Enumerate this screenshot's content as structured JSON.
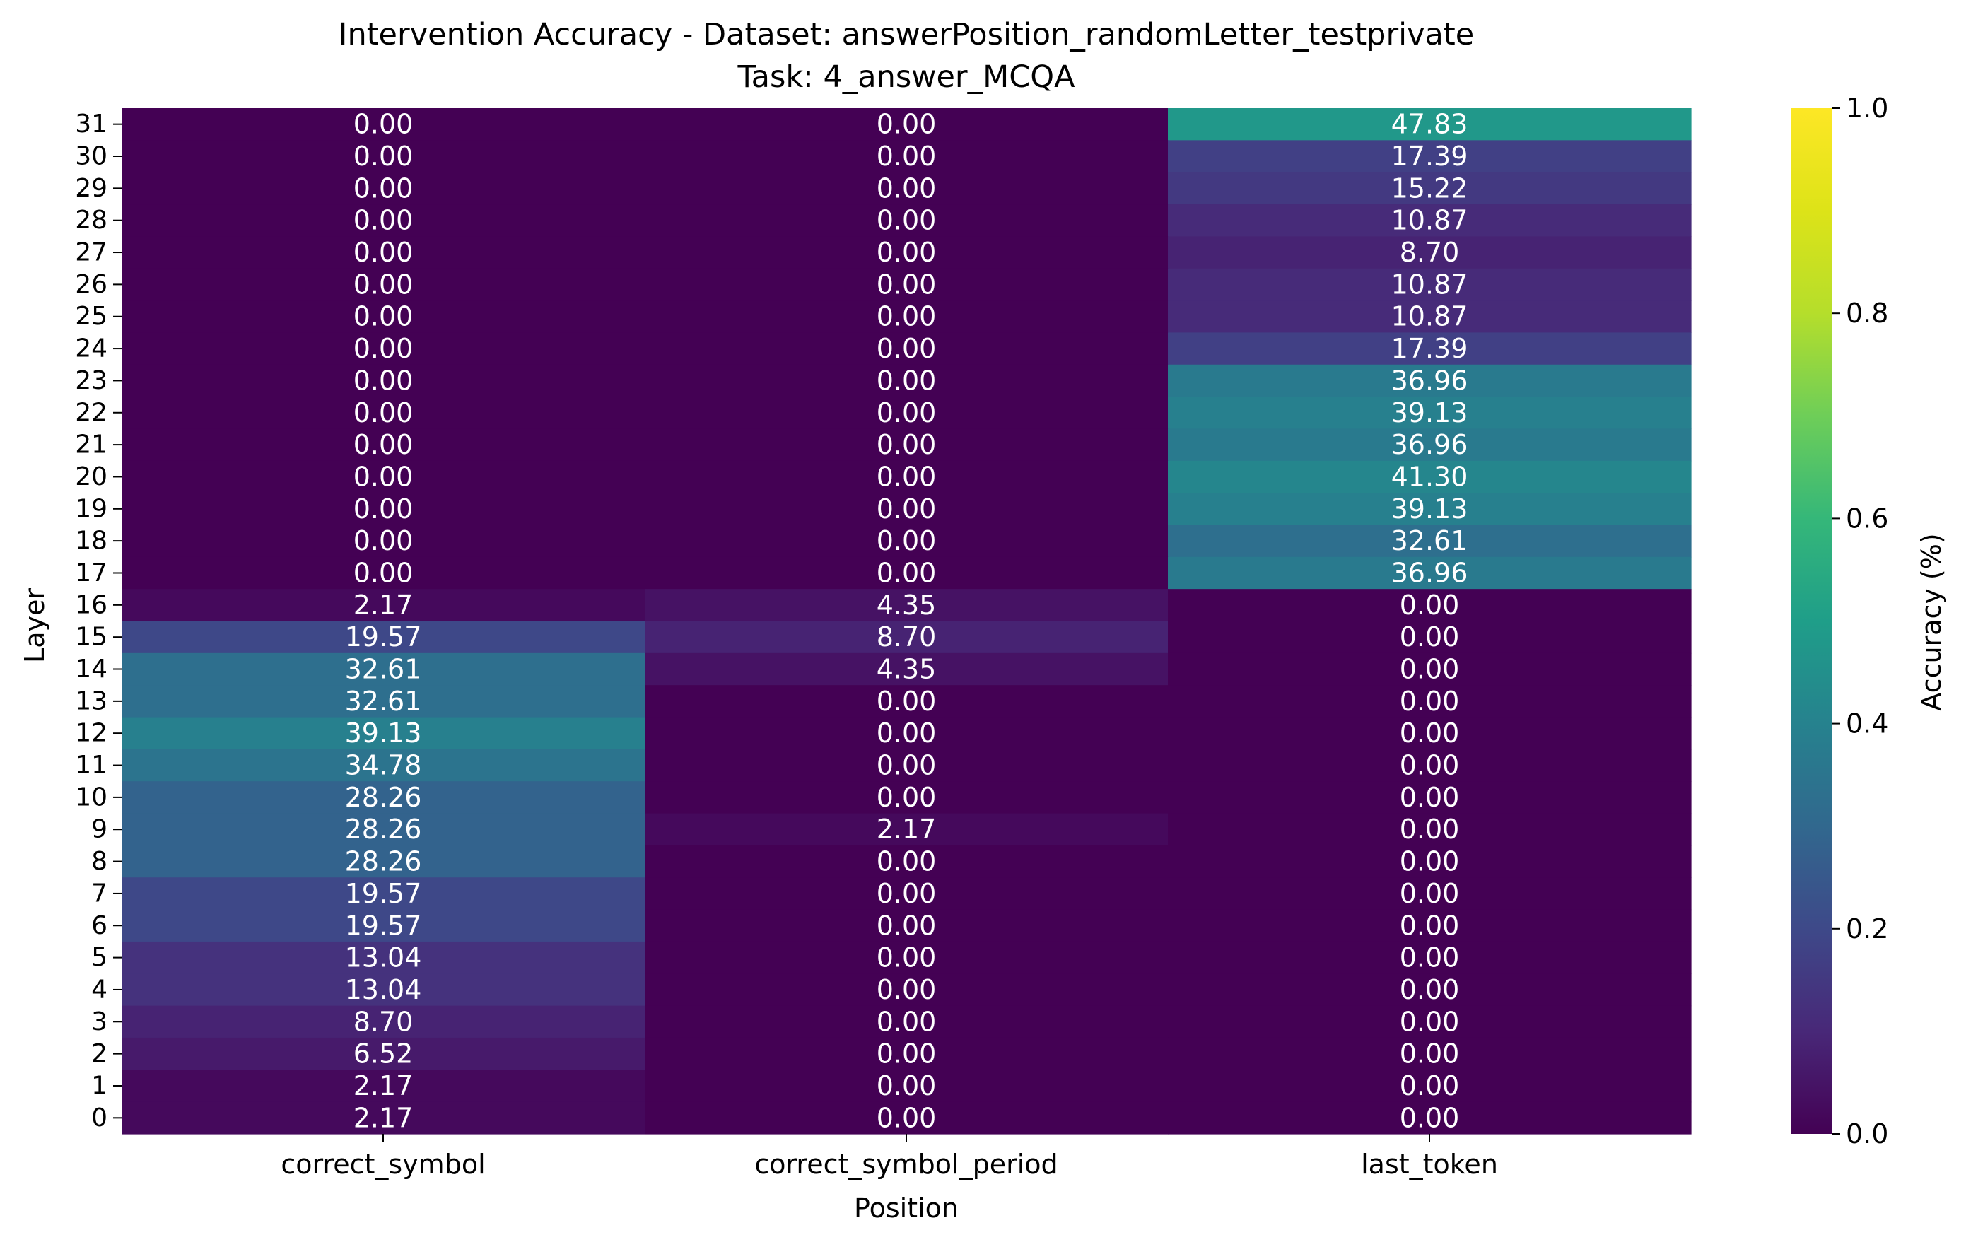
{
  "chart_data": {
    "type": "heatmap",
    "title_line1": "Intervention Accuracy - Dataset: answerPosition_randomLetter_testprivate",
    "title_line2": "Task: 4_answer_MCQA",
    "xlabel": "Position",
    "ylabel": "Layer",
    "columns": [
      "correct_symbol",
      "correct_symbol_period",
      "last_token"
    ],
    "rows": [
      "31",
      "30",
      "29",
      "28",
      "27",
      "26",
      "25",
      "24",
      "23",
      "22",
      "21",
      "20",
      "19",
      "18",
      "17",
      "16",
      "15",
      "14",
      "13",
      "12",
      "11",
      "10",
      "9",
      "8",
      "7",
      "6",
      "5",
      "4",
      "3",
      "2",
      "1",
      "0"
    ],
    "values": [
      [
        0.0,
        0.0,
        47.83
      ],
      [
        0.0,
        0.0,
        17.39
      ],
      [
        0.0,
        0.0,
        15.22
      ],
      [
        0.0,
        0.0,
        10.87
      ],
      [
        0.0,
        0.0,
        8.7
      ],
      [
        0.0,
        0.0,
        10.87
      ],
      [
        0.0,
        0.0,
        10.87
      ],
      [
        0.0,
        0.0,
        17.39
      ],
      [
        0.0,
        0.0,
        36.96
      ],
      [
        0.0,
        0.0,
        39.13
      ],
      [
        0.0,
        0.0,
        36.96
      ],
      [
        0.0,
        0.0,
        41.3
      ],
      [
        0.0,
        0.0,
        39.13
      ],
      [
        0.0,
        0.0,
        32.61
      ],
      [
        0.0,
        0.0,
        36.96
      ],
      [
        2.17,
        4.35,
        0.0
      ],
      [
        19.57,
        8.7,
        0.0
      ],
      [
        32.61,
        4.35,
        0.0
      ],
      [
        32.61,
        0.0,
        0.0
      ],
      [
        39.13,
        0.0,
        0.0
      ],
      [
        34.78,
        0.0,
        0.0
      ],
      [
        28.26,
        0.0,
        0.0
      ],
      [
        28.26,
        2.17,
        0.0
      ],
      [
        28.26,
        0.0,
        0.0
      ],
      [
        19.57,
        0.0,
        0.0
      ],
      [
        19.57,
        0.0,
        0.0
      ],
      [
        13.04,
        0.0,
        0.0
      ],
      [
        13.04,
        0.0,
        0.0
      ],
      [
        8.7,
        0.0,
        0.0
      ],
      [
        6.52,
        0.0,
        0.0
      ],
      [
        2.17,
        0.0,
        0.0
      ],
      [
        2.17,
        0.0,
        0.0
      ]
    ],
    "value_format": "2 decimals",
    "colormap": "viridis",
    "colorbar": {
      "label": "Accuracy (%)",
      "range": [
        0.0,
        1.0
      ],
      "ticks": [
        "0.0",
        "0.2",
        "0.4",
        "0.6",
        "0.8",
        "1.0"
      ]
    },
    "text_color": "#ffffff",
    "axis_color": "#000000"
  }
}
